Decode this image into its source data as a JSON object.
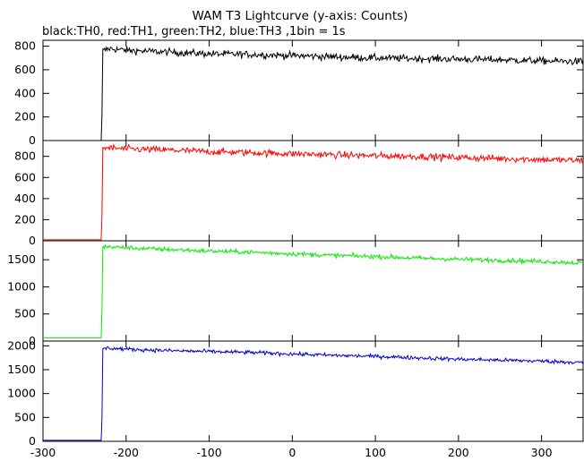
{
  "chart_data": {
    "type": "line",
    "title": "WAM T3 Lightcurve (y-axis: Counts)",
    "subtitle": "black:TH0, red:TH1, green:TH2, blue:TH3 ,1bin = 1s",
    "xlabel": "",
    "ylabel": "",
    "xlim": [
      -300,
      350
    ],
    "x_ticks": [
      -300,
      -200,
      -100,
      0,
      100,
      200,
      300
    ],
    "grid": false,
    "legend": "none",
    "series": [
      {
        "name": "TH0",
        "color": "#000000",
        "ylim": [
          0,
          850
        ],
        "y_ticks": [
          0,
          200,
          400,
          600,
          800
        ],
        "x": [
          -300,
          -230,
          -229,
          -228,
          -220,
          -200,
          -150,
          -100,
          -50,
          0,
          50,
          100,
          150,
          200,
          250,
          300,
          350
        ],
        "y": [
          0,
          0,
          220,
          760,
          780,
          765,
          750,
          735,
          730,
          720,
          710,
          700,
          695,
          690,
          685,
          675,
          670
        ],
        "noise": 30
      },
      {
        "name": "TH1",
        "color": "#ff0000",
        "ylim": [
          0,
          950
        ],
        "y_ticks": [
          0,
          200,
          400,
          600,
          800
        ],
        "x": [
          -300,
          -230,
          -229,
          -228,
          -220,
          -200,
          -150,
          -100,
          -50,
          0,
          50,
          100,
          150,
          200,
          250,
          300,
          350
        ],
        "y": [
          10,
          10,
          250,
          880,
          880,
          870,
          860,
          845,
          835,
          825,
          815,
          805,
          800,
          790,
          780,
          770,
          760
        ],
        "noise": 32
      },
      {
        "name": "TH2",
        "color": "#00ee00",
        "ylim": [
          0,
          1850
        ],
        "y_ticks": [
          0,
          500,
          1000,
          1500
        ],
        "x": [
          -300,
          -230,
          -229,
          -228,
          -220,
          -200,
          -150,
          -100,
          -50,
          0,
          50,
          100,
          150,
          200,
          250,
          300,
          350
        ],
        "y": [
          60,
          60,
          600,
          1740,
          1740,
          1720,
          1690,
          1660,
          1640,
          1610,
          1580,
          1560,
          1530,
          1510,
          1490,
          1470,
          1440
        ],
        "noise": 40
      },
      {
        "name": "TH3",
        "color": "#0000cc",
        "ylim": [
          0,
          2100
        ],
        "y_ticks": [
          0,
          500,
          1000,
          1500,
          2000
        ],
        "x": [
          -300,
          -230,
          -229,
          -228,
          -220,
          -200,
          -150,
          -100,
          -50,
          0,
          50,
          100,
          150,
          200,
          250,
          300,
          350
        ],
        "y": [
          20,
          20,
          500,
          1950,
          1950,
          1930,
          1900,
          1880,
          1860,
          1830,
          1800,
          1780,
          1750,
          1720,
          1700,
          1680,
          1650
        ],
        "noise": 40
      }
    ]
  }
}
